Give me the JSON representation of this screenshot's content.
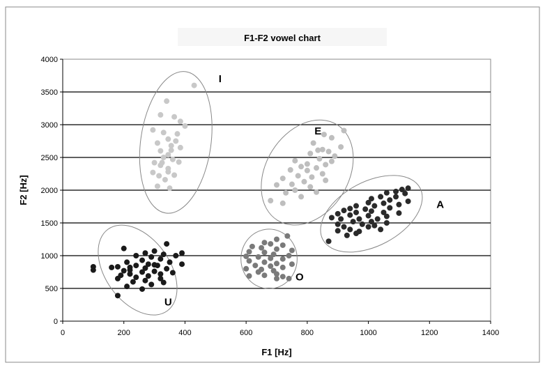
{
  "chart_data": {
    "type": "scatter",
    "title": "F1-F2 vowel chart",
    "xlabel": "F1 [Hz]",
    "ylabel": "F2 [Hz]",
    "xlim": [
      0,
      1400
    ],
    "ylim": [
      0,
      4000
    ],
    "xticks": [
      0,
      200,
      400,
      600,
      800,
      1000,
      1200,
      1400
    ],
    "yticks": [
      0,
      500,
      1000,
      1500,
      2000,
      2500,
      3000,
      3500,
      4000
    ],
    "grid": "horizontal",
    "legend": "none",
    "series": [
      {
        "name": "I",
        "color": "#c8c8c8",
        "ellipse": {
          "cx": 370,
          "cy": 2730,
          "rx": 115,
          "ry": 1090,
          "angle_deg": 8
        },
        "label_at": [
          515,
          3650
        ],
        "points": [
          [
            430,
            3600
          ],
          [
            340,
            3360
          ],
          [
            320,
            3150
          ],
          [
            365,
            3120
          ],
          [
            385,
            3050
          ],
          [
            295,
            2920
          ],
          [
            330,
            2880
          ],
          [
            400,
            2980
          ],
          [
            345,
            2780
          ],
          [
            370,
            2750
          ],
          [
            310,
            2720
          ],
          [
            385,
            2650
          ],
          [
            355,
            2610
          ],
          [
            320,
            2600
          ],
          [
            345,
            2540
          ],
          [
            330,
            2500
          ],
          [
            360,
            2470
          ],
          [
            300,
            2420
          ],
          [
            380,
            2430
          ],
          [
            320,
            2380
          ],
          [
            345,
            2330
          ],
          [
            295,
            2270
          ],
          [
            315,
            2220
          ],
          [
            365,
            2230
          ],
          [
            335,
            2160
          ],
          [
            310,
            2060
          ],
          [
            350,
            2030
          ],
          [
            345,
            2280
          ],
          [
            325,
            2420
          ],
          [
            355,
            2680
          ],
          [
            375,
            2860
          ]
        ]
      },
      {
        "name": "E",
        "color": "#bebebe",
        "ellipse": {
          "cx": 800,
          "cy": 2270,
          "rx": 135,
          "ry": 860,
          "angle_deg": 32
        },
        "label_at": [
          835,
          2850
        ],
        "points": [
          [
            920,
            2910
          ],
          [
            855,
            2850
          ],
          [
            880,
            2800
          ],
          [
            820,
            2720
          ],
          [
            910,
            2660
          ],
          [
            835,
            2610
          ],
          [
            870,
            2590
          ],
          [
            810,
            2560
          ],
          [
            890,
            2520
          ],
          [
            840,
            2480
          ],
          [
            760,
            2450
          ],
          [
            800,
            2400
          ],
          [
            860,
            2390
          ],
          [
            780,
            2360
          ],
          [
            830,
            2340
          ],
          [
            745,
            2310
          ],
          [
            800,
            2300
          ],
          [
            850,
            2250
          ],
          [
            770,
            2220
          ],
          [
            815,
            2200
          ],
          [
            720,
            2180
          ],
          [
            860,
            2150
          ],
          [
            790,
            2130
          ],
          [
            750,
            2090
          ],
          [
            700,
            2080
          ],
          [
            810,
            2050
          ],
          [
            760,
            2000
          ],
          [
            830,
            1970
          ],
          [
            730,
            1960
          ],
          [
            780,
            1900
          ],
          [
            680,
            1840
          ],
          [
            720,
            1800
          ],
          [
            850,
            2620
          ],
          [
            880,
            2440
          ]
        ]
      },
      {
        "name": "A",
        "color": "#2a2a2a",
        "ellipse": {
          "cx": 1010,
          "cy": 1640,
          "rx": 105,
          "ry": 840,
          "angle_deg": 62
        },
        "label_at": [
          1235,
          1730
        ],
        "points": [
          [
            1130,
            2030
          ],
          [
            1110,
            2010
          ],
          [
            1090,
            1980
          ],
          [
            1060,
            1960
          ],
          [
            1120,
            1950
          ],
          [
            1040,
            1900
          ],
          [
            1090,
            1900
          ],
          [
            1010,
            1870
          ],
          [
            1070,
            1850
          ],
          [
            1130,
            1830
          ],
          [
            1000,
            1810
          ],
          [
            1050,
            1800
          ],
          [
            1100,
            1780
          ],
          [
            960,
            1760
          ],
          [
            1020,
            1760
          ],
          [
            940,
            1720
          ],
          [
            990,
            1710
          ],
          [
            1070,
            1730
          ],
          [
            920,
            1690
          ],
          [
            1010,
            1680
          ],
          [
            1050,
            1660
          ],
          [
            960,
            1660
          ],
          [
            900,
            1640
          ],
          [
            1100,
            1650
          ],
          [
            940,
            1620
          ],
          [
            1000,
            1610
          ],
          [
            880,
            1580
          ],
          [
            1060,
            1600
          ],
          [
            910,
            1560
          ],
          [
            970,
            1560
          ],
          [
            1030,
            1560
          ],
          [
            950,
            1520
          ],
          [
            1010,
            1520
          ],
          [
            900,
            1480
          ],
          [
            980,
            1480
          ],
          [
            1060,
            1500
          ],
          [
            920,
            1440
          ],
          [
            1000,
            1440
          ],
          [
            940,
            1400
          ],
          [
            970,
            1370
          ],
          [
            900,
            1380
          ],
          [
            1040,
            1400
          ],
          [
            960,
            1340
          ],
          [
            930,
            1310
          ],
          [
            870,
            1220
          ],
          [
            1020,
            1460
          ]
        ]
      },
      {
        "name": "O",
        "color": "#7a7a7a",
        "ellipse": {
          "cx": 675,
          "cy": 950,
          "rx": 92,
          "ry": 455,
          "angle_deg": 0
        },
        "label_at": [
          775,
          620
        ],
        "points": [
          [
            735,
            1300
          ],
          [
            700,
            1250
          ],
          [
            660,
            1200
          ],
          [
            680,
            1180
          ],
          [
            720,
            1160
          ],
          [
            620,
            1140
          ],
          [
            650,
            1120
          ],
          [
            700,
            1100
          ],
          [
            750,
            1080
          ],
          [
            610,
            1060
          ],
          [
            660,
            1050
          ],
          [
            690,
            1020
          ],
          [
            740,
            1000
          ],
          [
            600,
            990
          ],
          [
            640,
            980
          ],
          [
            680,
            960
          ],
          [
            720,
            950
          ],
          [
            610,
            920
          ],
          [
            660,
            900
          ],
          [
            700,
            880
          ],
          [
            750,
            870
          ],
          [
            630,
            850
          ],
          [
            680,
            840
          ],
          [
            720,
            820
          ],
          [
            600,
            800
          ],
          [
            650,
            790
          ],
          [
            690,
            770
          ],
          [
            640,
            750
          ],
          [
            700,
            720
          ],
          [
            660,
            700
          ],
          [
            720,
            680
          ],
          [
            610,
            690
          ],
          [
            700,
            650
          ],
          [
            740,
            650
          ]
        ]
      },
      {
        "name": "U",
        "color": "#1a1a1a",
        "ellipse": {
          "cx": 245,
          "cy": 780,
          "rx": 165,
          "ry": 490,
          "angle_deg": 54
        },
        "label_at": [
          345,
          240
        ],
        "points": [
          [
            340,
            1180
          ],
          [
            200,
            1110
          ],
          [
            300,
            1070
          ],
          [
            390,
            1040
          ],
          [
            270,
            1040
          ],
          [
            330,
            1020
          ],
          [
            370,
            1000
          ],
          [
            240,
            1000
          ],
          [
            290,
            980
          ],
          [
            320,
            950
          ],
          [
            260,
            930
          ],
          [
            210,
            900
          ],
          [
            350,
            900
          ],
          [
            390,
            870
          ],
          [
            280,
            870
          ],
          [
            240,
            850
          ],
          [
            310,
            850
          ],
          [
            180,
            830
          ],
          [
            100,
            830
          ],
          [
            160,
            820
          ],
          [
            220,
            820
          ],
          [
            270,
            810
          ],
          [
            340,
            800
          ],
          [
            100,
            780
          ],
          [
            200,
            770
          ],
          [
            300,
            760
          ],
          [
            260,
            750
          ],
          [
            360,
            740
          ],
          [
            220,
            720
          ],
          [
            320,
            720
          ],
          [
            190,
            700
          ],
          [
            280,
            690
          ],
          [
            240,
            670
          ],
          [
            180,
            650
          ],
          [
            320,
            650
          ],
          [
            270,
            620
          ],
          [
            230,
            600
          ],
          [
            330,
            590
          ],
          [
            290,
            560
          ],
          [
            210,
            530
          ],
          [
            260,
            490
          ],
          [
            180,
            390
          ],
          [
            300,
            860
          ],
          [
            220,
            780
          ]
        ]
      }
    ]
  }
}
